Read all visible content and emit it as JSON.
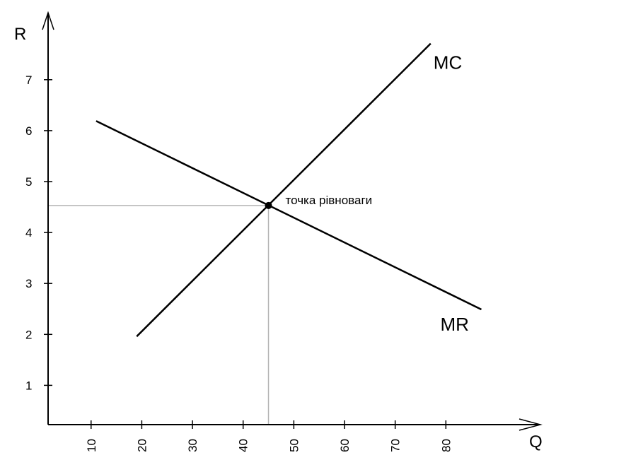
{
  "chart_data": {
    "type": "line",
    "title": "",
    "xlabel": "Q",
    "ylabel": "R",
    "xlim": [
      2,
      98
    ],
    "ylim": [
      0.2,
      8.6
    ],
    "grid": false,
    "x_ticks": [
      10,
      20,
      30,
      40,
      50,
      60,
      70,
      80
    ],
    "y_ticks": [
      1,
      2,
      3,
      4,
      5,
      6,
      7
    ],
    "series": [
      {
        "name": "MC",
        "color": "#000000",
        "x": [
          19,
          77
        ],
        "y": [
          1.96,
          7.71
        ]
      },
      {
        "name": "MR",
        "color": "#000000",
        "x": [
          11,
          87
        ],
        "y": [
          6.19,
          2.49
        ]
      }
    ],
    "annotations": [
      {
        "text": "точка рівноваги",
        "x": 45,
        "y": 4.53
      }
    ],
    "guide_color": "#b4b4b4"
  }
}
